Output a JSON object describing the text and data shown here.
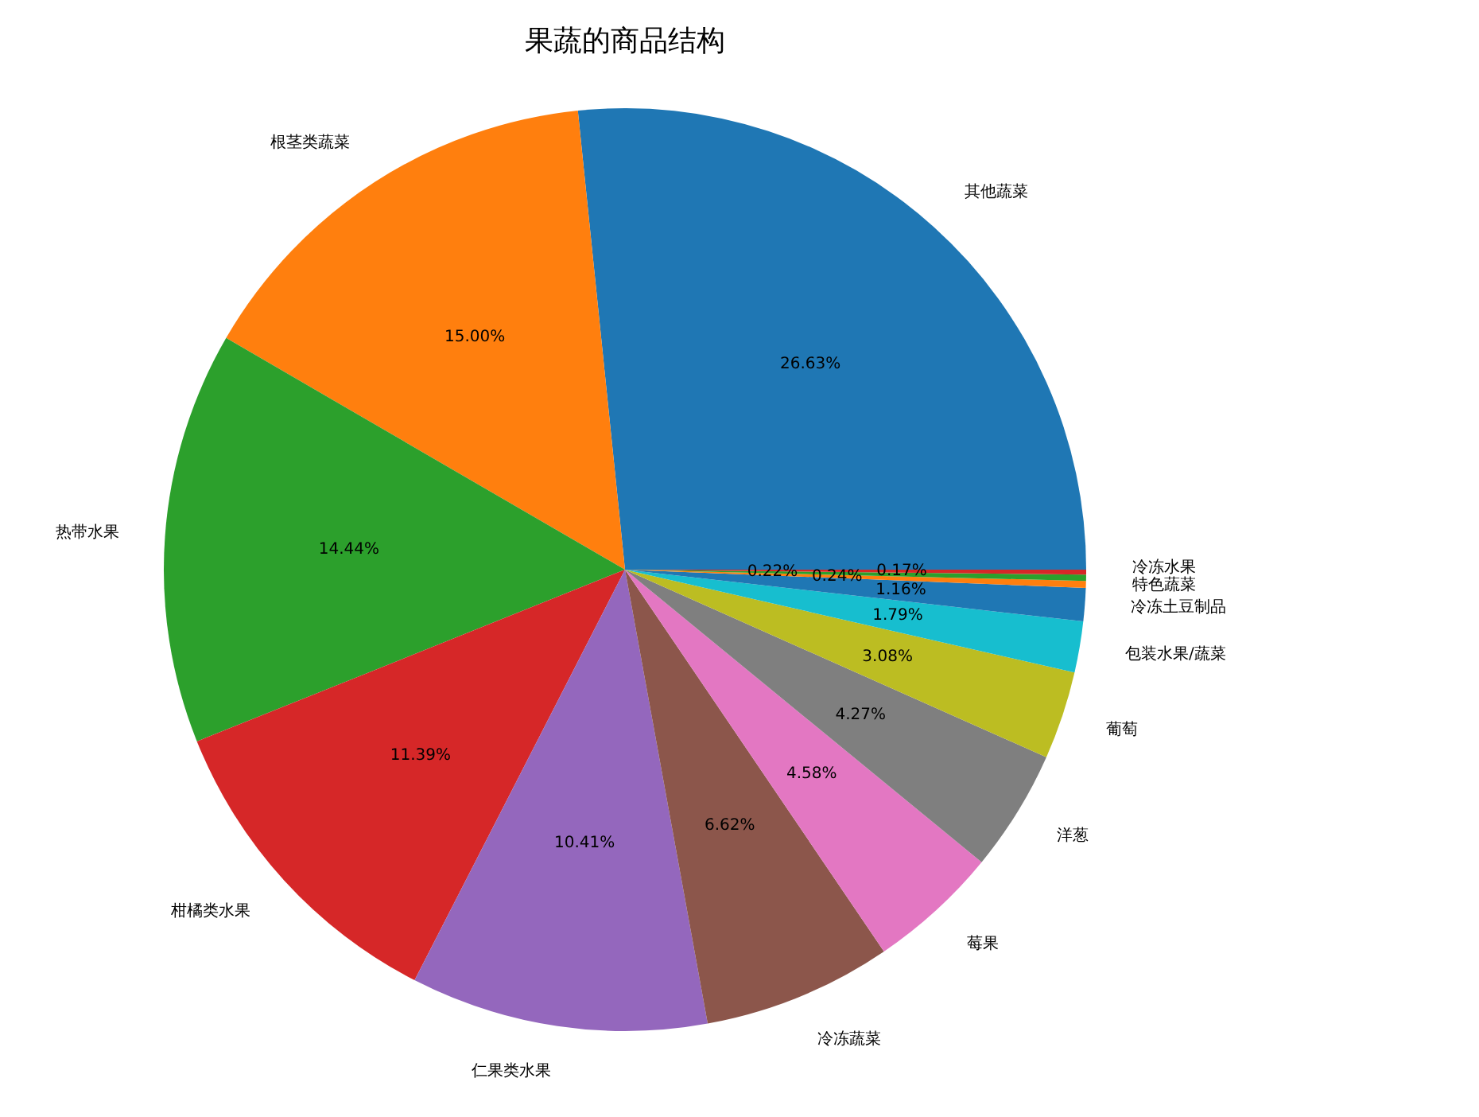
{
  "chart_data": {
    "type": "pie",
    "title": "果蔬的商品结构",
    "categories": [
      "其他蔬菜",
      "根茎类蔬菜",
      "热带水果",
      "柑橘类水果",
      "仁果类水果",
      "冷冻蔬菜",
      "莓果",
      "洋葱",
      "葡萄",
      "包装水果/蔬菜",
      "冷冻土豆制品",
      "特色蔬菜",
      null,
      "冷冻水果"
    ],
    "values": [
      26.63,
      15.0,
      14.44,
      11.39,
      10.41,
      6.62,
      4.58,
      4.27,
      3.08,
      1.79,
      1.16,
      0.24,
      0.22,
      0.17
    ],
    "value_labels": [
      "26.63%",
      "15.00%",
      "14.44%",
      "11.39%",
      "10.41%",
      "6.62%",
      "4.58%",
      "4.27%",
      "3.08%",
      "1.79%",
      "1.16%",
      "0.24%",
      "0.22%",
      "0.17%"
    ],
    "colors": [
      "#1f77b4",
      "#ff7f0e",
      "#2ca02c",
      "#d62728",
      "#9467bd",
      "#8c564b",
      "#e377c2",
      "#7f7f7f",
      "#bcbd22",
      "#17becf",
      "#1f77b4",
      "#ff7f0e",
      "#2ca02c",
      "#d62728"
    ]
  }
}
